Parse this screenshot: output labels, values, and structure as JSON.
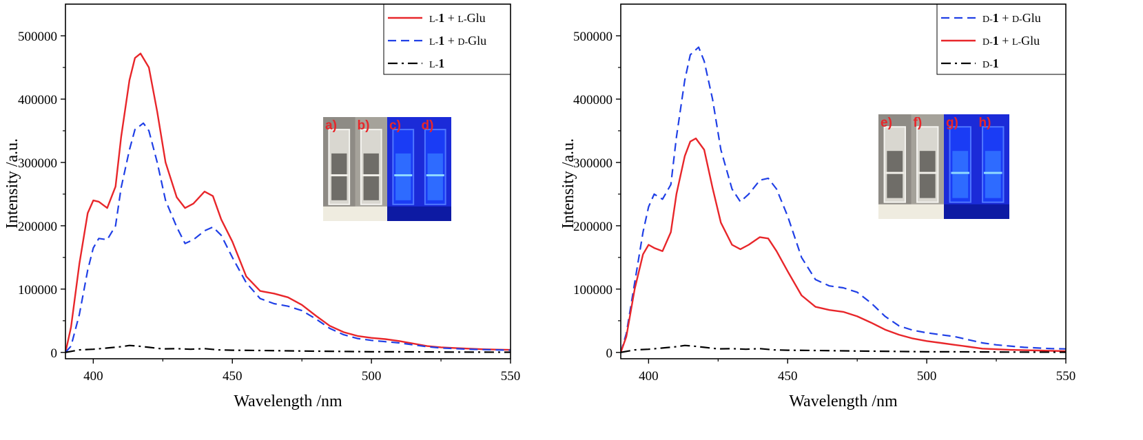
{
  "chart_data": [
    {
      "type": "line",
      "panel": "left",
      "xlabel": "Wavelength /nm",
      "ylabel": "Intensity /a.u.",
      "xlim": [
        390,
        550
      ],
      "ylim": [
        -10000,
        550000
      ],
      "xticks": [
        400,
        450,
        500,
        550
      ],
      "yticks": [
        0,
        100000,
        200000,
        300000,
        400000,
        500000
      ],
      "legend_position": "top-right",
      "series": [
        {
          "name": "L-1 + L-Glu",
          "legend": {
            "prefix": "L-",
            "bold": "1",
            "suffix": " + L-Glu"
          },
          "color": "#e8262a",
          "style": "solid",
          "x": [
            390,
            392,
            395,
            398,
            400,
            402,
            405,
            408,
            410,
            413,
            415,
            417,
            420,
            423,
            426,
            430,
            433,
            436,
            440,
            443,
            446,
            450,
            455,
            460,
            465,
            470,
            475,
            480,
            485,
            490,
            495,
            500,
            505,
            510,
            515,
            520,
            525,
            530,
            535,
            540,
            545,
            550
          ],
          "y": [
            0,
            40000,
            140000,
            220000,
            240000,
            238000,
            228000,
            262000,
            340000,
            430000,
            465000,
            472000,
            450000,
            380000,
            300000,
            245000,
            228000,
            235000,
            254000,
            247000,
            210000,
            175000,
            120000,
            97000,
            93000,
            87000,
            75000,
            58000,
            42000,
            32000,
            26000,
            23000,
            21000,
            18000,
            14000,
            10000,
            8000,
            7000,
            6000,
            5000,
            4500,
            4000
          ]
        },
        {
          "name": "L-1 + D-Glu",
          "legend": {
            "prefix": "L-",
            "bold": "1",
            "suffix": " + D-Glu"
          },
          "color": "#1f3fe6",
          "style": "dashed",
          "x": [
            390,
            392,
            395,
            398,
            400,
            402,
            405,
            408,
            410,
            413,
            415,
            418,
            420,
            423,
            426,
            430,
            433,
            436,
            440,
            443,
            446,
            450,
            455,
            460,
            465,
            470,
            475,
            480,
            485,
            490,
            495,
            500,
            505,
            510,
            515,
            520,
            525,
            530,
            535,
            540,
            545,
            550
          ],
          "y": [
            0,
            10000,
            60000,
            130000,
            165000,
            180000,
            178000,
            200000,
            260000,
            320000,
            352000,
            362000,
            350000,
            300000,
            240000,
            198000,
            172000,
            178000,
            192000,
            198000,
            185000,
            150000,
            110000,
            85000,
            77000,
            73000,
            66000,
            53000,
            38000,
            28000,
            22000,
            19000,
            17000,
            15000,
            12000,
            9000,
            7000,
            6000,
            5000,
            4500,
            4000,
            3500
          ]
        },
        {
          "name": "L-1",
          "legend": {
            "prefix": "L-",
            "bold": "1",
            "suffix": ""
          },
          "color": "#000000",
          "style": "dashdot",
          "x": [
            390,
            395,
            400,
            405,
            410,
            413,
            416,
            420,
            425,
            430,
            435,
            440,
            445,
            450,
            460,
            470,
            480,
            490,
            500,
            510,
            520,
            530,
            540,
            550
          ],
          "y": [
            0,
            4000,
            5000,
            7000,
            9000,
            11000,
            10000,
            8000,
            5500,
            6000,
            5000,
            6000,
            4000,
            3500,
            3000,
            2500,
            2000,
            1500,
            1000,
            1000,
            800,
            500,
            400,
            300
          ]
        }
      ],
      "inset_labels": [
        "a)",
        "b)",
        "c)",
        "d)"
      ]
    },
    {
      "type": "line",
      "panel": "right",
      "xlabel": "Wavelength /nm",
      "ylabel": "Intensity /a.u.",
      "xlim": [
        390,
        550
      ],
      "ylim": [
        -10000,
        550000
      ],
      "xticks": [
        400,
        450,
        500,
        550
      ],
      "yticks": [
        0,
        100000,
        200000,
        300000,
        400000,
        500000
      ],
      "legend_position": "top-right",
      "series": [
        {
          "name": "D-1 + D-Glu",
          "legend": {
            "prefix": "D-",
            "bold": "1",
            "suffix": " + D-Glu"
          },
          "color": "#1f3fe6",
          "style": "dashed",
          "x": [
            390,
            392,
            395,
            398,
            400,
            402,
            405,
            408,
            410,
            413,
            415,
            418,
            420,
            423,
            426,
            430,
            433,
            436,
            440,
            443,
            446,
            450,
            455,
            460,
            465,
            470,
            475,
            480,
            485,
            490,
            495,
            500,
            505,
            510,
            515,
            520,
            525,
            530,
            535,
            540,
            545,
            550
          ],
          "y": [
            0,
            30000,
            110000,
            190000,
            230000,
            250000,
            242000,
            265000,
            340000,
            430000,
            470000,
            482000,
            460000,
            400000,
            320000,
            258000,
            238000,
            250000,
            272000,
            275000,
            258000,
            215000,
            150000,
            115000,
            105000,
            102000,
            95000,
            78000,
            57000,
            42000,
            35000,
            31000,
            28000,
            25000,
            20000,
            15000,
            12000,
            10000,
            8000,
            7000,
            6000,
            5500
          ]
        },
        {
          "name": "D-1 + L-Glu",
          "legend": {
            "prefix": "D-",
            "bold": "1",
            "suffix": " + L-Glu"
          },
          "color": "#e8262a",
          "style": "solid",
          "x": [
            390,
            392,
            395,
            398,
            400,
            402,
            405,
            408,
            410,
            413,
            415,
            417,
            420,
            423,
            426,
            430,
            433,
            436,
            440,
            443,
            446,
            450,
            455,
            460,
            465,
            470,
            475,
            480,
            485,
            490,
            495,
            500,
            505,
            510,
            515,
            520,
            525,
            530,
            535,
            540,
            545,
            550
          ],
          "y": [
            0,
            25000,
            100000,
            155000,
            170000,
            165000,
            160000,
            190000,
            250000,
            310000,
            333000,
            338000,
            320000,
            260000,
            205000,
            170000,
            163000,
            170000,
            182000,
            180000,
            160000,
            128000,
            90000,
            72000,
            67000,
            64000,
            57000,
            47000,
            36000,
            28000,
            22000,
            18000,
            15000,
            12000,
            9000,
            6000,
            5000,
            4000,
            3500,
            3000,
            2500,
            2000
          ]
        },
        {
          "name": "D-1",
          "legend": {
            "prefix": "D-",
            "bold": "1",
            "suffix": ""
          },
          "color": "#000000",
          "style": "dashdot",
          "x": [
            390,
            395,
            400,
            405,
            410,
            413,
            416,
            420,
            425,
            430,
            435,
            440,
            445,
            450,
            460,
            470,
            480,
            490,
            500,
            510,
            520,
            530,
            540,
            550
          ],
          "y": [
            0,
            4000,
            5000,
            7000,
            9000,
            11000,
            10000,
            8000,
            5500,
            6000,
            5000,
            6000,
            4000,
            3500,
            3000,
            2500,
            2000,
            1500,
            1000,
            1000,
            800,
            500,
            400,
            300
          ]
        }
      ],
      "inset_labels": [
        "e)",
        "f)",
        "g)",
        "h)"
      ]
    }
  ]
}
